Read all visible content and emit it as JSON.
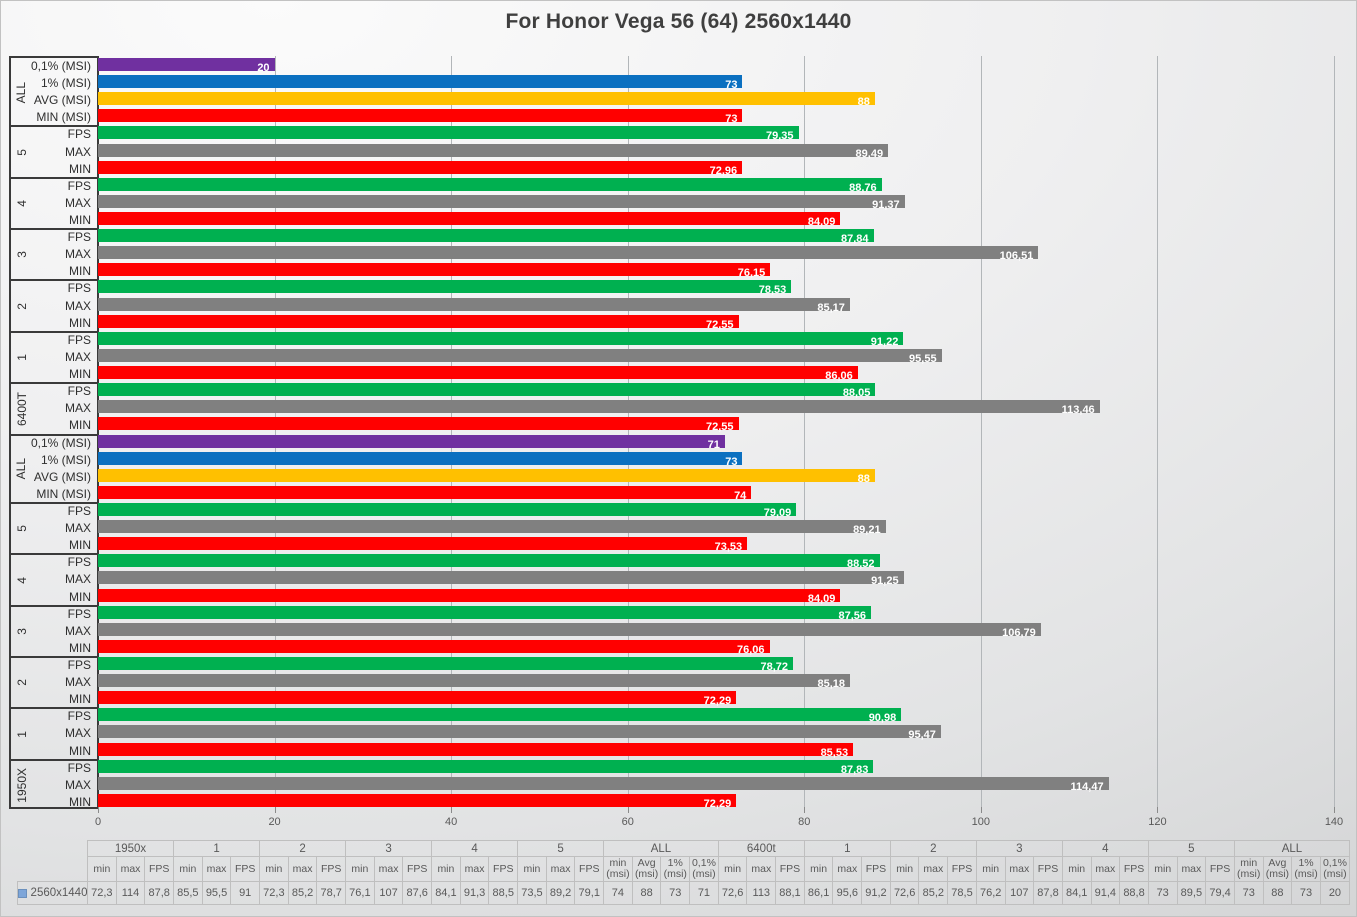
{
  "title": "For Honor Vega 56 (64) 2560x1440",
  "colors": {
    "purple": "#7030A0",
    "blue": "#0B70C0",
    "yellow": "#FFC000",
    "red": "#FF0000",
    "green": "#00B050",
    "gray": "#808080",
    "legend_marker": "#7EA6D9"
  },
  "chart_data": {
    "type": "bar",
    "orientation": "horizontal",
    "title": "For Honor Vega 56 (64) 2560x1440",
    "series_name": "2560x1440",
    "xlim": [
      0,
      140
    ],
    "xticks": [
      0,
      20,
      40,
      60,
      80,
      100,
      120,
      140
    ],
    "grid": "vertical",
    "value_labels": "inside-end, white bold, comma decimals",
    "groups": [
      {
        "label": "ALL",
        "rows": [
          {
            "label": "0,1% (MSI)",
            "value": 20,
            "display": "20",
            "color": "purple"
          },
          {
            "label": "1% (MSI)",
            "value": 73,
            "display": "73",
            "color": "blue"
          },
          {
            "label": "AVG (MSI)",
            "value": 88,
            "display": "88",
            "color": "yellow"
          },
          {
            "label": "MIN (MSI)",
            "value": 73,
            "display": "73",
            "color": "red"
          }
        ]
      },
      {
        "label": "5",
        "rows": [
          {
            "label": "FPS",
            "value": 79.35,
            "display": "79,35",
            "color": "green"
          },
          {
            "label": "MAX",
            "value": 89.49,
            "display": "89,49",
            "color": "gray"
          },
          {
            "label": "MIN",
            "value": 72.96,
            "display": "72,96",
            "color": "red"
          }
        ]
      },
      {
        "label": "4",
        "rows": [
          {
            "label": "FPS",
            "value": 88.76,
            "display": "88,76",
            "color": "green"
          },
          {
            "label": "MAX",
            "value": 91.37,
            "display": "91,37",
            "color": "gray"
          },
          {
            "label": "MIN",
            "value": 84.09,
            "display": "84,09",
            "color": "red"
          }
        ]
      },
      {
        "label": "3",
        "rows": [
          {
            "label": "FPS",
            "value": 87.84,
            "display": "87,84",
            "color": "green"
          },
          {
            "label": "MAX",
            "value": 106.51,
            "display": "106,51",
            "color": "gray"
          },
          {
            "label": "MIN",
            "value": 76.15,
            "display": "76,15",
            "color": "red"
          }
        ]
      },
      {
        "label": "2",
        "rows": [
          {
            "label": "FPS",
            "value": 78.53,
            "display": "78,53",
            "color": "green"
          },
          {
            "label": "MAX",
            "value": 85.17,
            "display": "85,17",
            "color": "gray"
          },
          {
            "label": "MIN",
            "value": 72.55,
            "display": "72,55",
            "color": "red"
          }
        ]
      },
      {
        "label": "1",
        "rows": [
          {
            "label": "FPS",
            "value": 91.22,
            "display": "91,22",
            "color": "green"
          },
          {
            "label": "MAX",
            "value": 95.55,
            "display": "95,55",
            "color": "gray"
          },
          {
            "label": "MIN",
            "value": 86.06,
            "display": "86,06",
            "color": "red"
          }
        ]
      },
      {
        "label": "6400T",
        "rows": [
          {
            "label": "FPS",
            "value": 88.05,
            "display": "88,05",
            "color": "green"
          },
          {
            "label": "MAX",
            "value": 113.46,
            "display": "113,46",
            "color": "gray"
          },
          {
            "label": "MIN",
            "value": 72.55,
            "display": "72,55",
            "color": "red"
          }
        ]
      },
      {
        "label": "ALL",
        "rows": [
          {
            "label": "0,1% (MSI)",
            "value": 71,
            "display": "71",
            "color": "purple"
          },
          {
            "label": "1% (MSI)",
            "value": 73,
            "display": "73",
            "color": "blue"
          },
          {
            "label": "AVG (MSI)",
            "value": 88,
            "display": "88",
            "color": "yellow"
          },
          {
            "label": "MIN (MSI)",
            "value": 74,
            "display": "74",
            "color": "red"
          }
        ]
      },
      {
        "label": "5",
        "rows": [
          {
            "label": "FPS",
            "value": 79.09,
            "display": "79,09",
            "color": "green"
          },
          {
            "label": "MAX",
            "value": 89.21,
            "display": "89,21",
            "color": "gray"
          },
          {
            "label": "MIN",
            "value": 73.53,
            "display": "73,53",
            "color": "red"
          }
        ]
      },
      {
        "label": "4",
        "rows": [
          {
            "label": "FPS",
            "value": 88.52,
            "display": "88,52",
            "color": "green"
          },
          {
            "label": "MAX",
            "value": 91.25,
            "display": "91,25",
            "color": "gray"
          },
          {
            "label": "MIN",
            "value": 84.09,
            "display": "84,09",
            "color": "red"
          }
        ]
      },
      {
        "label": "3",
        "rows": [
          {
            "label": "FPS",
            "value": 87.56,
            "display": "87,56",
            "color": "green"
          },
          {
            "label": "MAX",
            "value": 106.79,
            "display": "106,79",
            "color": "gray"
          },
          {
            "label": "MIN",
            "value": 76.06,
            "display": "76,06",
            "color": "red"
          }
        ]
      },
      {
        "label": "2",
        "rows": [
          {
            "label": "FPS",
            "value": 78.72,
            "display": "78,72",
            "color": "green"
          },
          {
            "label": "MAX",
            "value": 85.18,
            "display": "85,18",
            "color": "gray"
          },
          {
            "label": "MIN",
            "value": 72.29,
            "display": "72,29",
            "color": "red"
          }
        ]
      },
      {
        "label": "1",
        "rows": [
          {
            "label": "FPS",
            "value": 90.98,
            "display": "90,98",
            "color": "green"
          },
          {
            "label": "MAX",
            "value": 95.47,
            "display": "95,47",
            "color": "gray"
          },
          {
            "label": "MIN",
            "value": 85.53,
            "display": "85,53",
            "color": "red"
          }
        ]
      },
      {
        "label": "1950X",
        "rows": [
          {
            "label": "FPS",
            "value": 87.83,
            "display": "87,83",
            "color": "green"
          },
          {
            "label": "MAX",
            "value": 114.47,
            "display": "114,47",
            "color": "gray"
          },
          {
            "label": "MIN",
            "value": 72.29,
            "display": "72,29",
            "color": "red"
          }
        ]
      }
    ]
  },
  "table": {
    "legend_label": "2560x1440",
    "groups": [
      {
        "label": "1950x",
        "cols": [
          "min",
          "max",
          "FPS"
        ],
        "values": [
          "72,3",
          "114",
          "87,8"
        ]
      },
      {
        "label": "1",
        "cols": [
          "min",
          "max",
          "FPS"
        ],
        "values": [
          "85,5",
          "95,5",
          "91"
        ]
      },
      {
        "label": "2",
        "cols": [
          "min",
          "max",
          "FPS"
        ],
        "values": [
          "72,3",
          "85,2",
          "78,7"
        ]
      },
      {
        "label": "3",
        "cols": [
          "min",
          "max",
          "FPS"
        ],
        "values": [
          "76,1",
          "107",
          "87,6"
        ]
      },
      {
        "label": "4",
        "cols": [
          "min",
          "max",
          "FPS"
        ],
        "values": [
          "84,1",
          "91,3",
          "88,5"
        ]
      },
      {
        "label": "5",
        "cols": [
          "min",
          "max",
          "FPS"
        ],
        "values": [
          "73,5",
          "89,2",
          "79,1"
        ]
      },
      {
        "label": "ALL",
        "cols": [
          "min\n(msi)",
          "Avg\n(msi)",
          "1%\n(msi)",
          "0,1%\n(msi)"
        ],
        "values": [
          "74",
          "88",
          "73",
          "71"
        ]
      },
      {
        "label": "6400t",
        "cols": [
          "min",
          "max",
          "FPS"
        ],
        "values": [
          "72,6",
          "113",
          "88,1"
        ]
      },
      {
        "label": "1",
        "cols": [
          "min",
          "max",
          "FPS"
        ],
        "values": [
          "86,1",
          "95,6",
          "91,2"
        ]
      },
      {
        "label": "2",
        "cols": [
          "min",
          "max",
          "FPS"
        ],
        "values": [
          "72,6",
          "85,2",
          "78,5"
        ]
      },
      {
        "label": "3",
        "cols": [
          "min",
          "max",
          "FPS"
        ],
        "values": [
          "76,2",
          "107",
          "87,8"
        ]
      },
      {
        "label": "4",
        "cols": [
          "min",
          "max",
          "FPS"
        ],
        "values": [
          "84,1",
          "91,4",
          "88,8"
        ]
      },
      {
        "label": "5",
        "cols": [
          "min",
          "max",
          "FPS"
        ],
        "values": [
          "73",
          "89,5",
          "79,4"
        ]
      },
      {
        "label": "ALL",
        "cols": [
          "min\n(msi)",
          "Avg\n(msi)",
          "1%\n(msi)",
          "0,1%\n(msi)"
        ],
        "values": [
          "73",
          "88",
          "73",
          "20"
        ]
      }
    ]
  }
}
